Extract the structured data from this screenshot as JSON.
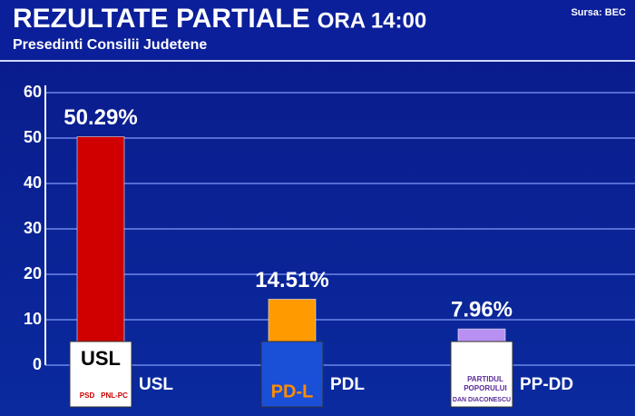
{
  "chart_data": {
    "type": "bar",
    "title": "REZULTATE PARTIALE",
    "title_suffix": "ORA 14:00",
    "subtitle": "Presedinti Consilii Judetene",
    "source": "Sursa: BEC",
    "categories": [
      "USL",
      "PDL",
      "PP-DD"
    ],
    "values": [
      50.29,
      14.51,
      7.96
    ],
    "value_labels": [
      "50.29%",
      "14.51%",
      "7.96%"
    ],
    "colors": [
      "#d00000",
      "#ff9a00",
      "#b890f2"
    ],
    "ylim": [
      0,
      60
    ],
    "yticks": [
      0,
      10,
      20,
      30,
      40,
      50,
      60
    ],
    "grid": true,
    "logos": [
      {
        "texts": [
          "USL",
          "PSD",
          "PNL-PC"
        ]
      },
      {
        "texts": [
          "PD-L"
        ]
      },
      {
        "texts": [
          "PARTIDUL",
          "POPORULUI",
          "DAN DIACONESCU"
        ]
      }
    ]
  }
}
